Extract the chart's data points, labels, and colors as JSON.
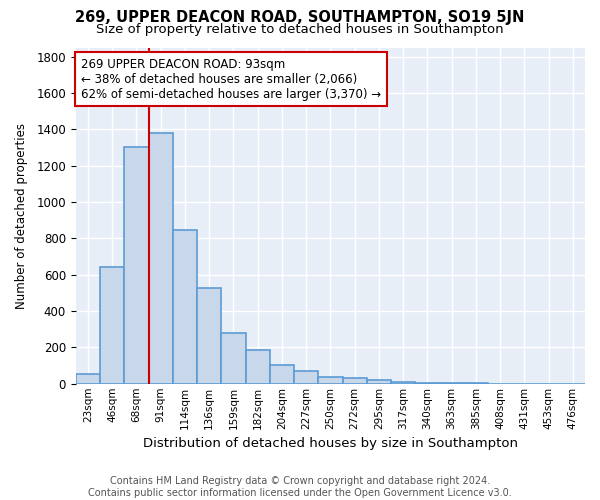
{
  "title1": "269, UPPER DEACON ROAD, SOUTHAMPTON, SO19 5JN",
  "title2": "Size of property relative to detached houses in Southampton",
  "xlabel": "Distribution of detached houses by size in Southampton",
  "ylabel": "Number of detached properties",
  "footnote": "Contains HM Land Registry data © Crown copyright and database right 2024.\nContains public sector information licensed under the Open Government Licence v3.0.",
  "bin_labels": [
    "23sqm",
    "46sqm",
    "68sqm",
    "91sqm",
    "114sqm",
    "136sqm",
    "159sqm",
    "182sqm",
    "204sqm",
    "227sqm",
    "250sqm",
    "272sqm",
    "295sqm",
    "317sqm",
    "340sqm",
    "363sqm",
    "385sqm",
    "408sqm",
    "431sqm",
    "453sqm",
    "476sqm"
  ],
  "bar_heights": [
    55,
    640,
    1300,
    1380,
    845,
    525,
    280,
    185,
    105,
    70,
    35,
    30,
    20,
    10,
    5,
    3,
    2,
    1,
    0,
    0,
    0
  ],
  "bar_color": "#c8d8ea",
  "bar_edge_color": "#5b9bd5",
  "bar_edge_width": 1.2,
  "red_line_bin": 3,
  "annotation_text": "269 UPPER DEACON ROAD: 93sqm\n← 38% of detached houses are smaller (2,066)\n62% of semi-detached houses are larger (3,370) →",
  "annotation_box_color": "white",
  "annotation_box_edge_color": "#cc0000",
  "red_line_color": "#cc0000",
  "ylim": [
    0,
    1850
  ],
  "yticks": [
    0,
    200,
    400,
    600,
    800,
    1000,
    1200,
    1400,
    1600,
    1800
  ],
  "background_color": "#e8eef8",
  "grid_color": "white",
  "title1_fontsize": 10.5,
  "title2_fontsize": 9.5,
  "xlabel_fontsize": 9.5,
  "ylabel_fontsize": 8.5,
  "footnote_fontsize": 7.0,
  "annotation_fontsize": 8.5
}
